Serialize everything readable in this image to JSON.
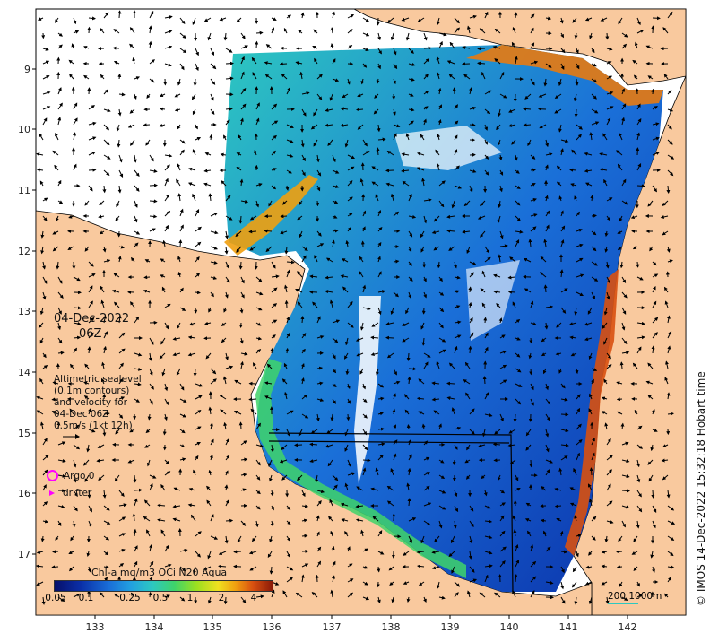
{
  "map": {
    "date": "04-Dec-2022",
    "time": "06Z",
    "sealevel_note": [
      "Altimetric sealevel",
      "(0.1m contours)",
      "and velocity for",
      "04-Dec 06Z",
      "0.5m/s (1kt 12h)"
    ],
    "argo_label": "Argo 0",
    "drifter_label": "drifter",
    "colorbar_title": "Chl-a mg/m3 OCi N20 Aqua",
    "colorbar_ticks": [
      "0.05",
      "0.1",
      "0.25",
      "0.5",
      "1",
      "2",
      "4"
    ],
    "scale_label": "200  1000m",
    "credit": "© IMOS 14-Dec-2022 15:32:18 Hobart time",
    "lon_ticks": [
      "133",
      "134",
      "135",
      "136",
      "137",
      "138",
      "139",
      "140",
      "141",
      "142"
    ],
    "lat_ticks": [
      "9",
      "10",
      "11",
      "12",
      "13",
      "14",
      "15",
      "16",
      "17"
    ],
    "colors": {
      "land": "#f9c99e",
      "ocean_low": "#0a2fa8",
      "ocean_mid": "#2dc8c0",
      "ocean_high": "#8b1a08",
      "argo": "#ff00ff"
    }
  }
}
